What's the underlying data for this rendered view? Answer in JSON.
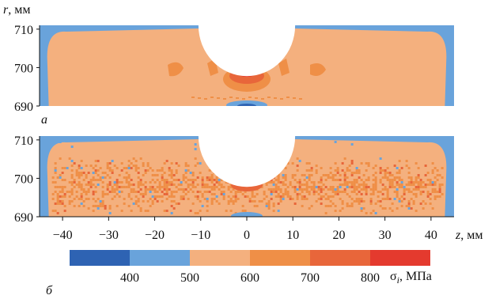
{
  "chart_data": {
    "type": "heatmap",
    "panels": [
      {
        "label": "а",
        "pattern": "smooth",
        "x_range": [
          -45,
          45
        ],
        "y_range": [
          690,
          711
        ],
        "y_ticks": [
          690,
          700,
          710
        ],
        "notch": {
          "center_z": 0,
          "radius": 10.5,
          "top_r": 711
        }
      },
      {
        "label": "б",
        "pattern": "speckled",
        "x_range": [
          -45,
          45
        ],
        "y_range": [
          690,
          711
        ],
        "y_ticks": [
          690,
          700,
          710
        ],
        "notch": {
          "center_z": 0,
          "radius": 10.5,
          "top_r": 711
        }
      }
    ],
    "y_axis_label": "r, мм",
    "x_axis_label": "z, мм",
    "x_ticks": [
      -40,
      -30,
      -20,
      -10,
      0,
      10,
      20,
      30,
      40
    ],
    "x_tick_labels": [
      "−40",
      "−30",
      "−20",
      "−10",
      "0",
      "10",
      "20",
      "30",
      "40"
    ],
    "colorbar": {
      "label": "σi, МПа",
      "ticks": [
        400,
        500,
        600,
        700,
        800
      ],
      "bins": [
        {
          "from": 300,
          "to": 400,
          "color": "#2e63b3"
        },
        {
          "from": 400,
          "to": 500,
          "color": "#69a3db"
        },
        {
          "from": 500,
          "to": 600,
          "color": "#f4b07e"
        },
        {
          "from": 600,
          "to": 700,
          "color": "#ef8f47"
        },
        {
          "from": 700,
          "to": 800,
          "color": "#e8663a"
        },
        {
          "from": 800,
          "to": 900,
          "color": "#e43a2e"
        }
      ]
    }
  }
}
